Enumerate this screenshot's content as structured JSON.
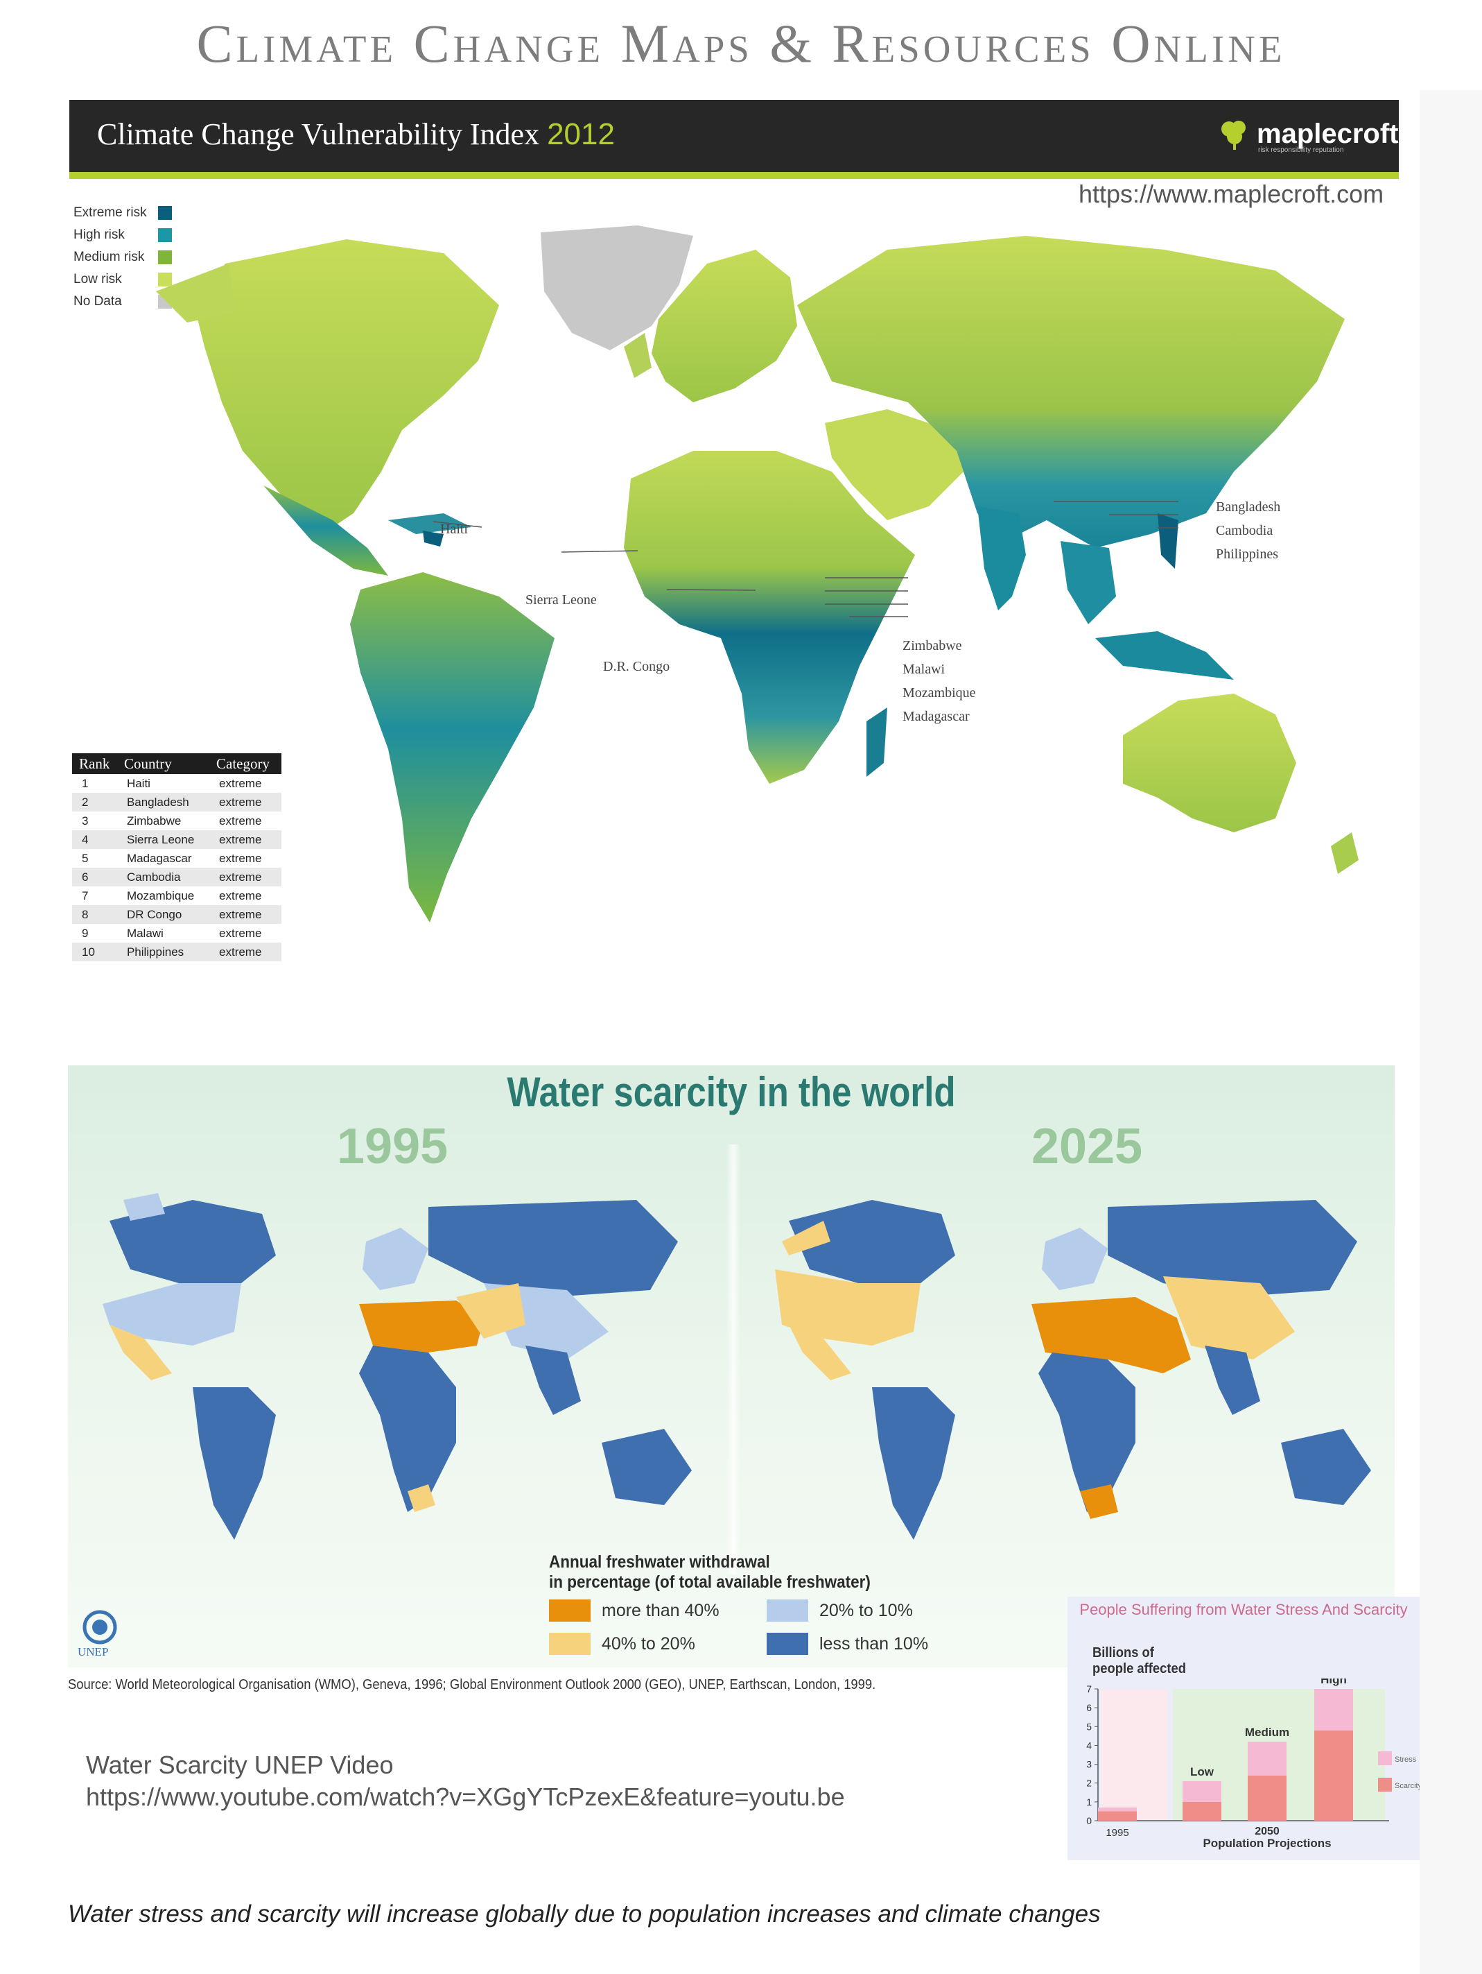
{
  "page_title": "Climate Change Maps & Resources Online",
  "vulnerability": {
    "title": "Climate Change Vulnerability Index",
    "year": "2012",
    "brand": "maplecroft",
    "brand_tagline": "risk responsibility reputation",
    "url": "https://www.maplecroft.com",
    "legend": [
      {
        "label": "Extreme risk",
        "color": "#0b5e7c"
      },
      {
        "label": "High risk",
        "color": "#1b97a6"
      },
      {
        "label": "Medium risk",
        "color": "#7fb53a"
      },
      {
        "label": "Low risk",
        "color": "#c9df5c"
      },
      {
        "label": "No Data",
        "color": "#c8c8c8"
      }
    ],
    "callouts": [
      "Haiti",
      "Sierra Leone",
      "D.R. Congo",
      "Zimbabwe",
      "Malawi",
      "Mozambique",
      "Madagascar",
      "Bangladesh",
      "Cambodia",
      "Philippines"
    ],
    "table": {
      "headers": [
        "Rank",
        "Country",
        "Category"
      ],
      "rows": [
        [
          "1",
          "Haiti",
          "extreme"
        ],
        [
          "2",
          "Bangladesh",
          "extreme"
        ],
        [
          "3",
          "Zimbabwe",
          "extreme"
        ],
        [
          "4",
          "Sierra Leone",
          "extreme"
        ],
        [
          "5",
          "Madagascar",
          "extreme"
        ],
        [
          "6",
          "Cambodia",
          "extreme"
        ],
        [
          "7",
          "Mozambique",
          "extreme"
        ],
        [
          "8",
          "DR Congo",
          "extreme"
        ],
        [
          "9",
          "Malawi",
          "extreme"
        ],
        [
          "10",
          "Philippines",
          "extreme"
        ]
      ]
    }
  },
  "water": {
    "title": "Water scarcity in the world",
    "year_left": "1995",
    "year_right": "2025",
    "legend_title_1": "Annual freshwater withdrawal",
    "legend_title_2": "in percentage (of total available freshwater)",
    "legend": [
      {
        "label": "more than 40%",
        "color": "#e8900c"
      },
      {
        "label": "20% to 10%",
        "color": "#b5cdea"
      },
      {
        "label": "40% to 20%",
        "color": "#f6d27c"
      },
      {
        "label": "less than 10%",
        "color": "#3f6fae"
      }
    ],
    "org": "UNEP",
    "source": "Source: World Meteorological Organisation (WMO), Geneva, 1996; Global Environment Outlook 2000 (GEO), UNEP, Earthscan, London, 1999."
  },
  "video": {
    "title": "Water Scarcity UNEP Video",
    "url": "https://www.youtube.com/watch?v=XGgYTcPzexE&feature=youtu.be"
  },
  "chart_data": {
    "type": "bar",
    "title": "People Suffering from Water Stress And Scarcity",
    "ylabel_1": "Billions of",
    "ylabel_2": "people affected",
    "y_ticks": [
      "0",
      "1",
      "2",
      "3",
      "4",
      "5",
      "6",
      "7"
    ],
    "ylim": [
      0,
      7
    ],
    "categories": [
      "1995",
      "Low",
      "Medium",
      "High"
    ],
    "category_group": "2050",
    "xlabel": "Population Projections",
    "series": [
      {
        "name": "Scarcity",
        "color": "#ef8d88",
        "values": [
          0.5,
          1.0,
          2.4,
          4.8
        ]
      },
      {
        "name": "Stress",
        "color": "#f6b9d3",
        "values": [
          0.2,
          1.1,
          1.8,
          2.2
        ]
      }
    ],
    "legend": [
      "Stress",
      "Scarcity"
    ]
  },
  "caption": "Water stress and scarcity will increase globally due to population increases and climate changes"
}
